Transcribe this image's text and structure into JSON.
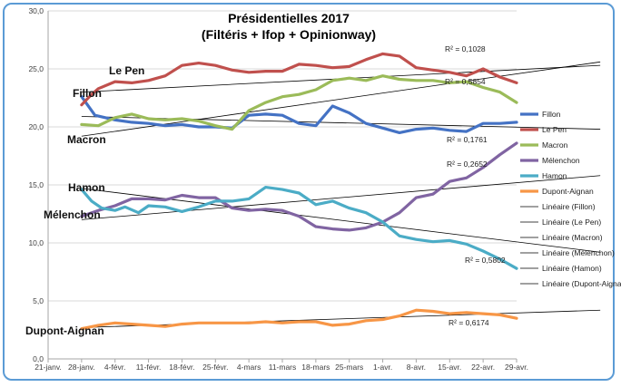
{
  "chart_data": {
    "type": "line",
    "title": "Présidentielles 2017",
    "subtitle": "(Filtéris + Ifop + Opinionway)",
    "xlabel": "",
    "ylabel": "",
    "ylim": [
      0,
      30
    ],
    "yticks": [
      "0,0",
      "5,0",
      "10,0",
      "15,0",
      "20,0",
      "25,0",
      "30,0"
    ],
    "xticks": [
      "21-janv.",
      "28-janv.",
      "4-févr.",
      "11-févr.",
      "18-févr.",
      "25-févr.",
      "4-mars",
      "11-mars",
      "18-mars",
      "25-mars",
      "1-avr.",
      "8-avr.",
      "15-avr.",
      "22-avr.",
      "29-avr."
    ],
    "grid": "horizontal",
    "legend_position": "right",
    "series": [
      {
        "name": "Fillon",
        "color": "#4472c4",
        "x": [
          1.0,
          1.4,
          2.0,
          2.5,
          3.0,
          3.5,
          4.0,
          4.5,
          5.0,
          5.5,
          6.0,
          6.5,
          7.0,
          7.5,
          8.0,
          8.5,
          9.0,
          9.5,
          10.0,
          10.5,
          11.0,
          11.5,
          12.0,
          12.5,
          13.0,
          13.5,
          14.0
        ],
        "y": [
          22.6,
          21.0,
          20.6,
          20.4,
          20.3,
          20.1,
          20.2,
          20.0,
          20.0,
          19.9,
          21.0,
          21.1,
          21.0,
          20.3,
          20.1,
          21.8,
          21.2,
          20.3,
          19.9,
          19.5,
          19.8,
          19.9,
          19.7,
          19.6,
          20.3,
          20.3,
          20.4
        ]
      },
      {
        "name": "Le Pen",
        "color": "#c0504d",
        "x": [
          1.0,
          1.3,
          1.5,
          2.0,
          2.5,
          3.0,
          3.5,
          4.0,
          4.5,
          5.0,
          5.5,
          6.0,
          6.5,
          7.0,
          7.5,
          8.0,
          8.5,
          9.0,
          9.5,
          10.0,
          10.5,
          11.0,
          11.5,
          12.0,
          12.5,
          13.0,
          13.5,
          14.0
        ],
        "y": [
          21.9,
          22.8,
          23.3,
          23.9,
          23.8,
          24.0,
          24.4,
          25.3,
          25.5,
          25.3,
          24.9,
          24.7,
          24.8,
          24.8,
          25.4,
          25.3,
          25.1,
          25.2,
          25.8,
          26.3,
          26.1,
          25.1,
          24.9,
          24.7,
          24.4,
          25.0,
          24.3,
          23.8
        ]
      },
      {
        "name": "Macron",
        "color": "#9bbb59",
        "x": [
          1.0,
          1.5,
          2.0,
          2.5,
          3.0,
          3.5,
          4.0,
          4.5,
          5.0,
          5.5,
          6.0,
          6.5,
          7.0,
          7.5,
          8.0,
          8.5,
          9.0,
          9.5,
          10.0,
          10.5,
          11.0,
          11.5,
          12.0,
          12.5,
          13.0,
          13.5,
          14.0
        ],
        "y": [
          20.2,
          20.1,
          20.8,
          21.1,
          20.7,
          20.6,
          20.7,
          20.5,
          20.1,
          19.8,
          21.4,
          22.1,
          22.6,
          22.8,
          23.2,
          24.0,
          24.2,
          24.0,
          24.4,
          24.1,
          24.0,
          24.0,
          23.8,
          23.9,
          23.4,
          23.0,
          22.1
        ]
      },
      {
        "name": "Mélenchon",
        "color": "#8064a2",
        "x": [
          1.0,
          1.5,
          2.0,
          2.5,
          3.0,
          3.5,
          4.0,
          4.5,
          5.0,
          5.5,
          6.0,
          6.5,
          7.0,
          7.5,
          8.0,
          8.5,
          9.0,
          9.5,
          10.0,
          10.5,
          11.0,
          11.5,
          12.0,
          12.5,
          13.0,
          13.5,
          14.0
        ],
        "y": [
          12.3,
          12.8,
          13.2,
          13.8,
          13.8,
          13.7,
          14.1,
          13.9,
          13.9,
          13.0,
          12.8,
          12.9,
          12.8,
          12.3,
          11.4,
          11.2,
          11.1,
          11.3,
          11.8,
          12.6,
          13.9,
          14.2,
          15.3,
          15.6,
          16.5,
          17.6,
          18.6
        ]
      },
      {
        "name": "Hamon",
        "color": "#4bacc6",
        "x": [
          1.0,
          1.3,
          1.6,
          2.0,
          2.3,
          2.7,
          3.0,
          3.5,
          4.0,
          4.5,
          5.0,
          5.5,
          6.0,
          6.5,
          7.0,
          7.5,
          8.0,
          8.5,
          9.0,
          9.5,
          10.0,
          10.5,
          11.0,
          11.5,
          12.0,
          12.5,
          13.0,
          13.5,
          14.0
        ],
        "y": [
          14.6,
          13.6,
          13.0,
          12.8,
          13.1,
          12.6,
          13.2,
          13.1,
          12.7,
          13.1,
          13.6,
          13.6,
          13.8,
          14.8,
          14.6,
          14.3,
          13.3,
          13.6,
          13.0,
          12.6,
          11.8,
          10.6,
          10.3,
          10.1,
          10.2,
          9.9,
          9.3,
          8.6,
          7.8
        ]
      },
      {
        "name": "Dupont-Aignan",
        "color": "#f79646",
        "x": [
          1.0,
          1.5,
          2.0,
          2.5,
          3.0,
          3.5,
          4.0,
          4.5,
          5.0,
          5.5,
          6.0,
          6.5,
          7.0,
          7.5,
          8.0,
          8.5,
          9.0,
          9.5,
          10.0,
          10.5,
          11.0,
          11.5,
          12.0,
          12.5,
          13.0,
          13.5,
          14.0
        ],
        "y": [
          2.6,
          2.9,
          3.1,
          3.0,
          2.9,
          2.8,
          3.0,
          3.1,
          3.1,
          3.1,
          3.1,
          3.2,
          3.1,
          3.2,
          3.2,
          2.9,
          3.0,
          3.3,
          3.4,
          3.7,
          4.2,
          4.1,
          3.9,
          4.0,
          3.9,
          3.8,
          3.5
        ]
      }
    ],
    "trendlines": [
      {
        "label": "Linéaire (Fillon)",
        "r2": "R² = 0,5854",
        "from": [
          1.0,
          20.9
        ],
        "to": [
          16.5,
          19.8
        ]
      },
      {
        "label": "Linéaire (Le Pen)",
        "r2": "R² = 0,1028",
        "from": [
          1.0,
          23.0
        ],
        "to": [
          16.5,
          25.3
        ]
      },
      {
        "label": "Linéaire (Macron)",
        "r2": "R² = 0,1761",
        "from": [
          1.0,
          19.2
        ],
        "to": [
          16.5,
          25.6
        ]
      },
      {
        "label": "Linéaire (Mélenchon)",
        "r2": "R² = 0,2652",
        "from": [
          1.0,
          12.0
        ],
        "to": [
          16.5,
          15.8
        ]
      },
      {
        "label": "Linéaire (Hamon)",
        "r2": "R² = 0,5802",
        "from": [
          1.0,
          14.7
        ],
        "to": [
          16.5,
          9.2
        ]
      },
      {
        "label": "Linéaire (Dupont-Aignan)",
        "r2": "R² = 0,6174",
        "from": [
          1.0,
          2.7
        ],
        "to": [
          16.5,
          4.2
        ]
      }
    ],
    "candidate_labels": [
      "Le Pen",
      "Fillon",
      "Macron",
      "Hamon",
      "Mélenchon",
      "Dupont-Aignan"
    ]
  }
}
